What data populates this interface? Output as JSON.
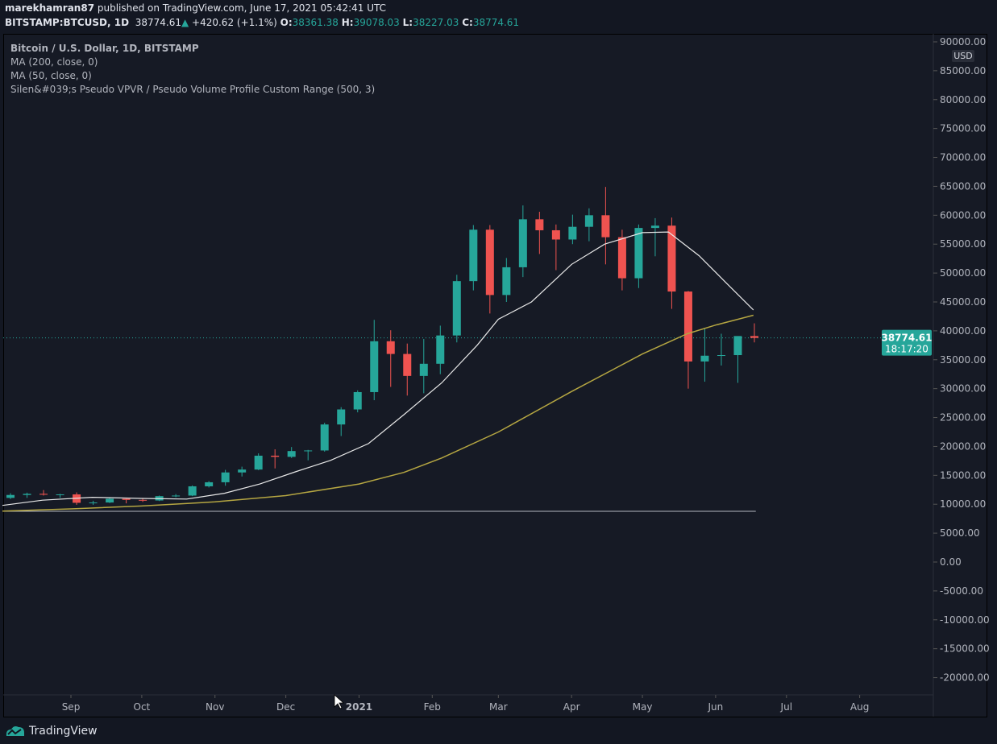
{
  "header": {
    "author": "marekhamran87",
    "published": "published on TradingView.com, June 17, 2021 05:42:41 UTC",
    "symbol": "BITSTAMP:BTCUSD, 1D",
    "last": "38774.61",
    "change": "+420.62 (+1.1%)",
    "o_label": "O:",
    "o": "38361.38",
    "h_label": "H:",
    "h": "39078.03",
    "l_label": "L:",
    "l": "38227.03",
    "c_label": "C:",
    "c": "38774.61"
  },
  "legend": [
    "Bitcoin / U.S. Dollar, 1D, BITSTAMP",
    "MA (200, close, 0)",
    "MA (50, close, 0)",
    "Silen&#039;s Pseudo VPVR / Pseudo Volume Profile Custom Range (500, 3)"
  ],
  "footer": {
    "brand": "TradingView"
  },
  "chart_data": {
    "type": "candlestick",
    "currency": "USD",
    "colors": {
      "up": "#26a69a",
      "down": "#ef5350",
      "ma50": "#e8e8e8",
      "ma200": "#b5a642",
      "background": "#161a25",
      "price_line": "#26a69a",
      "ref_line": "#b2b5be"
    },
    "ylim": [
      -22500,
      92000
    ],
    "y_ticks": [
      90000,
      85000,
      80000,
      75000,
      70000,
      65000,
      60000,
      55000,
      50000,
      45000,
      40000,
      35000,
      30000,
      25000,
      20000,
      15000,
      10000,
      5000,
      0,
      -5000,
      -10000,
      -15000,
      -20000
    ],
    "x_ticks": [
      {
        "label": "Sep",
        "date": "2020-09-01"
      },
      {
        "label": "Oct",
        "date": "2020-10-01"
      },
      {
        "label": "Nov",
        "date": "2020-11-01"
      },
      {
        "label": "Dec",
        "date": "2020-12-01"
      },
      {
        "label": "2021",
        "date": "2021-01-01"
      },
      {
        "label": "Feb",
        "date": "2021-02-01"
      },
      {
        "label": "Mar",
        "date": "2021-03-01"
      },
      {
        "label": "Apr",
        "date": "2021-04-01"
      },
      {
        "label": "May",
        "date": "2021-05-01"
      },
      {
        "label": "Jun",
        "date": "2021-06-01"
      },
      {
        "label": "Jul",
        "date": "2021-07-01"
      },
      {
        "label": "Aug",
        "date": "2021-08-01"
      }
    ],
    "last_price": {
      "value": 38774.61,
      "label": "38774.61",
      "countdown": "18:17:20"
    },
    "reference_line": {
      "value": 8780,
      "from": "2020-08-03",
      "to": "2021-06-17"
    },
    "candles": [
      [
        "2020-08-03",
        11100,
        11900,
        10900,
        11600
      ],
      [
        "2020-08-10",
        11600,
        12000,
        11100,
        11800
      ],
      [
        "2020-08-17",
        11800,
        12450,
        11500,
        11650
      ],
      [
        "2020-08-24",
        11650,
        11800,
        11100,
        11700
      ],
      [
        "2020-08-31",
        11700,
        12050,
        9900,
        10250
      ],
      [
        "2020-09-07",
        10250,
        10600,
        9900,
        10300
      ],
      [
        "2020-09-14",
        10300,
        11100,
        10200,
        10950
      ],
      [
        "2020-09-21",
        10950,
        10980,
        10150,
        10750
      ],
      [
        "2020-09-28",
        10750,
        10950,
        10400,
        10650
      ],
      [
        "2020-10-05",
        10650,
        11500,
        10550,
        11400
      ],
      [
        "2020-10-12",
        11400,
        11750,
        11200,
        11500
      ],
      [
        "2020-10-19",
        11500,
        13250,
        11400,
        13100
      ],
      [
        "2020-10-26",
        13100,
        14000,
        12900,
        13800
      ],
      [
        "2020-11-02",
        13800,
        15950,
        13200,
        15500
      ],
      [
        "2020-11-09",
        15500,
        16500,
        14800,
        16000
      ],
      [
        "2020-11-16",
        16000,
        18800,
        15900,
        18400
      ],
      [
        "2020-11-23",
        18400,
        19500,
        16200,
        18200
      ],
      [
        "2020-11-30",
        18200,
        19900,
        18000,
        19200
      ],
      [
        "2020-12-07",
        19200,
        19400,
        17600,
        19300
      ],
      [
        "2020-12-14",
        19300,
        24100,
        19100,
        23800
      ],
      [
        "2020-12-21",
        23800,
        26800,
        21800,
        26400
      ],
      [
        "2020-12-28",
        26400,
        29700,
        25900,
        29400
      ],
      [
        "2021-01-04",
        29400,
        41900,
        28000,
        38200
      ],
      [
        "2021-01-11",
        38200,
        40100,
        30300,
        36000
      ],
      [
        "2021-01-18",
        36000,
        37800,
        28800,
        32200
      ],
      [
        "2021-01-25",
        32200,
        38600,
        29200,
        34300
      ],
      [
        "2021-02-01",
        34300,
        40900,
        32500,
        39200
      ],
      [
        "2021-02-08",
        39200,
        49700,
        38000,
        48600
      ],
      [
        "2021-02-15",
        48600,
        58300,
        47000,
        57500
      ],
      [
        "2021-02-22",
        57500,
        58300,
        43000,
        46200
      ],
      [
        "2021-03-01",
        46200,
        52600,
        45000,
        51000
      ],
      [
        "2021-03-08",
        51000,
        61700,
        49300,
        59300
      ],
      [
        "2021-03-15",
        59300,
        60600,
        53300,
        57400
      ],
      [
        "2021-03-22",
        57400,
        58400,
        50500,
        55800
      ],
      [
        "2021-03-29",
        55800,
        60100,
        55000,
        58000
      ],
      [
        "2021-04-05",
        58000,
        61200,
        55500,
        60000
      ],
      [
        "2021-04-12",
        60000,
        64900,
        51500,
        56200
      ],
      [
        "2021-04-19",
        56200,
        57500,
        47000,
        49100
      ],
      [
        "2021-04-26",
        49100,
        58400,
        47400,
        57800
      ],
      [
        "2021-05-03",
        57800,
        59500,
        52900,
        58200
      ],
      [
        "2021-05-10",
        58200,
        59600,
        43800,
        46800
      ],
      [
        "2021-05-17",
        46800,
        46900,
        30000,
        34700
      ],
      [
        "2021-05-24",
        34700,
        40400,
        31200,
        35700
      ],
      [
        "2021-05-31",
        35700,
        39500,
        34000,
        35800
      ],
      [
        "2021-06-07",
        35800,
        38000,
        31000,
        39100
      ],
      [
        "2021-06-14",
        39100,
        41300,
        38000,
        38774.61
      ]
    ],
    "ma50": [
      [
        "2020-08-03",
        9800
      ],
      [
        "2020-08-20",
        10700
      ],
      [
        "2020-09-10",
        11200
      ],
      [
        "2020-10-01",
        11000
      ],
      [
        "2020-10-20",
        10900
      ],
      [
        "2020-11-05",
        11900
      ],
      [
        "2020-11-20",
        13500
      ],
      [
        "2020-12-05",
        15600
      ],
      [
        "2020-12-20",
        17600
      ],
      [
        "2021-01-05",
        20500
      ],
      [
        "2021-01-20",
        25500
      ],
      [
        "2021-02-05",
        31000
      ],
      [
        "2021-02-20",
        37500
      ],
      [
        "2021-03-01",
        42000
      ],
      [
        "2021-03-15",
        45000
      ],
      [
        "2021-04-01",
        51500
      ],
      [
        "2021-04-15",
        55000
      ],
      [
        "2021-05-01",
        57000
      ],
      [
        "2021-05-12",
        57100
      ],
      [
        "2021-05-25",
        53000
      ],
      [
        "2021-06-05",
        48500
      ],
      [
        "2021-06-17",
        43600
      ]
    ],
    "ma200": [
      [
        "2020-08-03",
        8800
      ],
      [
        "2020-09-01",
        9200
      ],
      [
        "2020-10-01",
        9700
      ],
      [
        "2020-11-01",
        10400
      ],
      [
        "2020-12-01",
        11500
      ],
      [
        "2021-01-01",
        13500
      ],
      [
        "2021-01-20",
        15500
      ],
      [
        "2021-02-05",
        18000
      ],
      [
        "2021-03-01",
        22500
      ],
      [
        "2021-04-01",
        29500
      ],
      [
        "2021-05-01",
        36000
      ],
      [
        "2021-05-20",
        39500
      ],
      [
        "2021-06-01",
        41000
      ],
      [
        "2021-06-17",
        42700
      ]
    ]
  }
}
